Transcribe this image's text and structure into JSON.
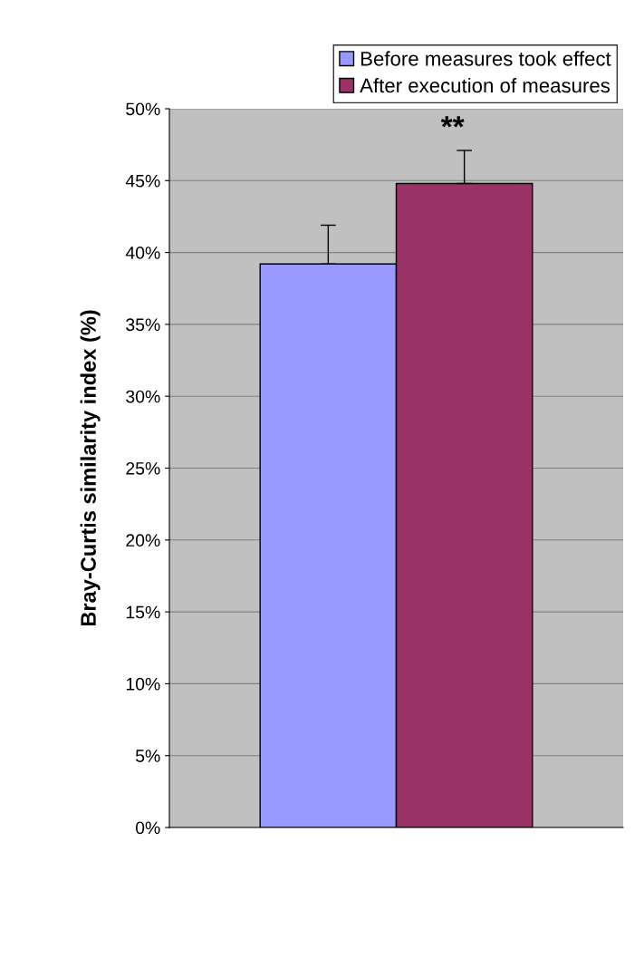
{
  "chart_data": {
    "type": "bar",
    "ylabel": "Bray-Curtis similarity index (%)",
    "categories": [
      null
    ],
    "series": [
      {
        "name": "Before measures took effect",
        "color": "#9999ff",
        "values": [
          39.2
        ],
        "errors": [
          2.7
        ]
      },
      {
        "name": "After execution of measures",
        "color": "#993366",
        "values": [
          44.8
        ],
        "errors": [
          2.3
        ]
      }
    ],
    "ylim": [
      0,
      50
    ],
    "yticks": [
      {
        "value": 0,
        "label": "0%"
      },
      {
        "value": 5,
        "label": "5%"
      },
      {
        "value": 10,
        "label": "10%"
      },
      {
        "value": 15,
        "label": "15%"
      },
      {
        "value": 20,
        "label": "20%"
      },
      {
        "value": 25,
        "label": "25%"
      },
      {
        "value": 30,
        "label": "30%"
      },
      {
        "value": 35,
        "label": "35%"
      },
      {
        "value": 40,
        "label": "40%"
      },
      {
        "value": 45,
        "label": "45%"
      },
      {
        "value": 50,
        "label": "50%"
      }
    ],
    "grid": "y",
    "legend": "top right",
    "annotations": [
      "**"
    ]
  }
}
